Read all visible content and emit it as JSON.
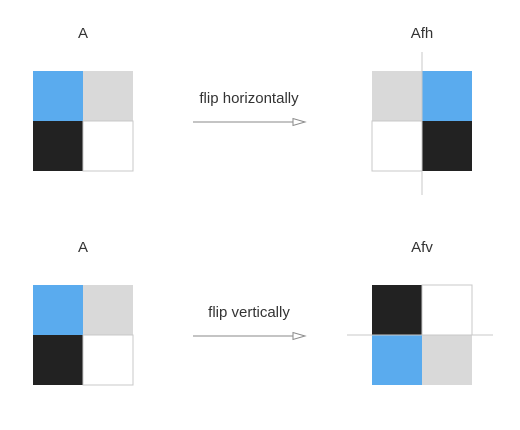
{
  "colors": {
    "blue": "#5aabee",
    "light_gray": "#d9d9d9",
    "black": "#222222",
    "white": "#ffffff",
    "border": "#c8c8c8",
    "axis_line": "#c8c8c8",
    "arrow": "#8a8a8a",
    "text": "#333333"
  },
  "top_row": {
    "source_label": "A",
    "operation_label": "flip horizontally",
    "result_label": "Afh",
    "source_grid": [
      "blue",
      "light_gray",
      "black",
      "white"
    ],
    "result_grid": [
      "light_gray",
      "blue",
      "white",
      "black"
    ],
    "mirror_axis": "vertical"
  },
  "bottom_row": {
    "source_label": "A",
    "operation_label": "flip vertically",
    "result_label": "Afv",
    "source_grid": [
      "blue",
      "light_gray",
      "black",
      "white"
    ],
    "result_grid": [
      "black",
      "white",
      "blue",
      "light_gray"
    ],
    "mirror_axis": "horizontal"
  }
}
